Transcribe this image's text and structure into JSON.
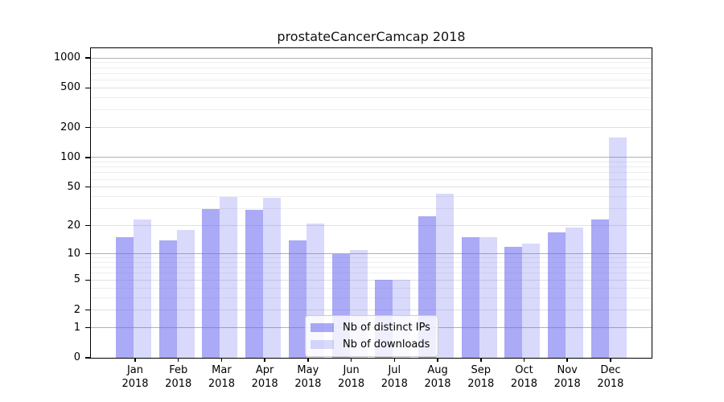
{
  "title": "prostateCancerCamcap 2018",
  "colors": {
    "background": "#ffffff",
    "spine": "#000000",
    "grid_major": "#b0b0b0",
    "grid_mid": "#e0e0e0",
    "grid_minor": "#eeeeee",
    "text": "#000000",
    "bar_base": "#6969f0"
  },
  "chart_data": {
    "type": "bar",
    "title": "prostateCancerCamcap 2018",
    "x_axis": {
      "categories": [
        "Jan",
        "Feb",
        "Mar",
        "Apr",
        "May",
        "Jun",
        "Jul",
        "Aug",
        "Sep",
        "Oct",
        "Nov",
        "Dec"
      ],
      "year_label": "2018"
    },
    "y_axis": {
      "scale": "log10(1+x)",
      "ticks": [
        0,
        1,
        2,
        5,
        10,
        20,
        50,
        100,
        200,
        500,
        1000
      ],
      "major_gridlines": [
        1,
        10,
        100,
        1000
      ],
      "mid_gridlines": [
        2,
        5,
        20,
        50,
        200,
        500
      ],
      "minor_gridlines": [
        3,
        4,
        6,
        7,
        8,
        9,
        30,
        40,
        60,
        70,
        80,
        90,
        300,
        400,
        600,
        700,
        800,
        900
      ],
      "top_value": 1250,
      "grid": true
    },
    "series": [
      {
        "name": "Nb of distinct IPs",
        "slug": "distinct-ips",
        "color": "rgba(105,105,240,0.57)",
        "values": [
          15,
          14,
          30,
          29,
          14,
          10,
          5,
          25,
          15,
          12,
          17,
          23
        ]
      },
      {
        "name": "Nb of downloads",
        "slug": "downloads",
        "color": "rgba(105,105,240,0.25)",
        "values": [
          23,
          18,
          40,
          39,
          21,
          11,
          5,
          43,
          15,
          13,
          19,
          160
        ]
      }
    ],
    "legend": {
      "position": "lower center",
      "items": [
        "Nb of distinct IPs",
        "Nb of downloads"
      ]
    }
  }
}
